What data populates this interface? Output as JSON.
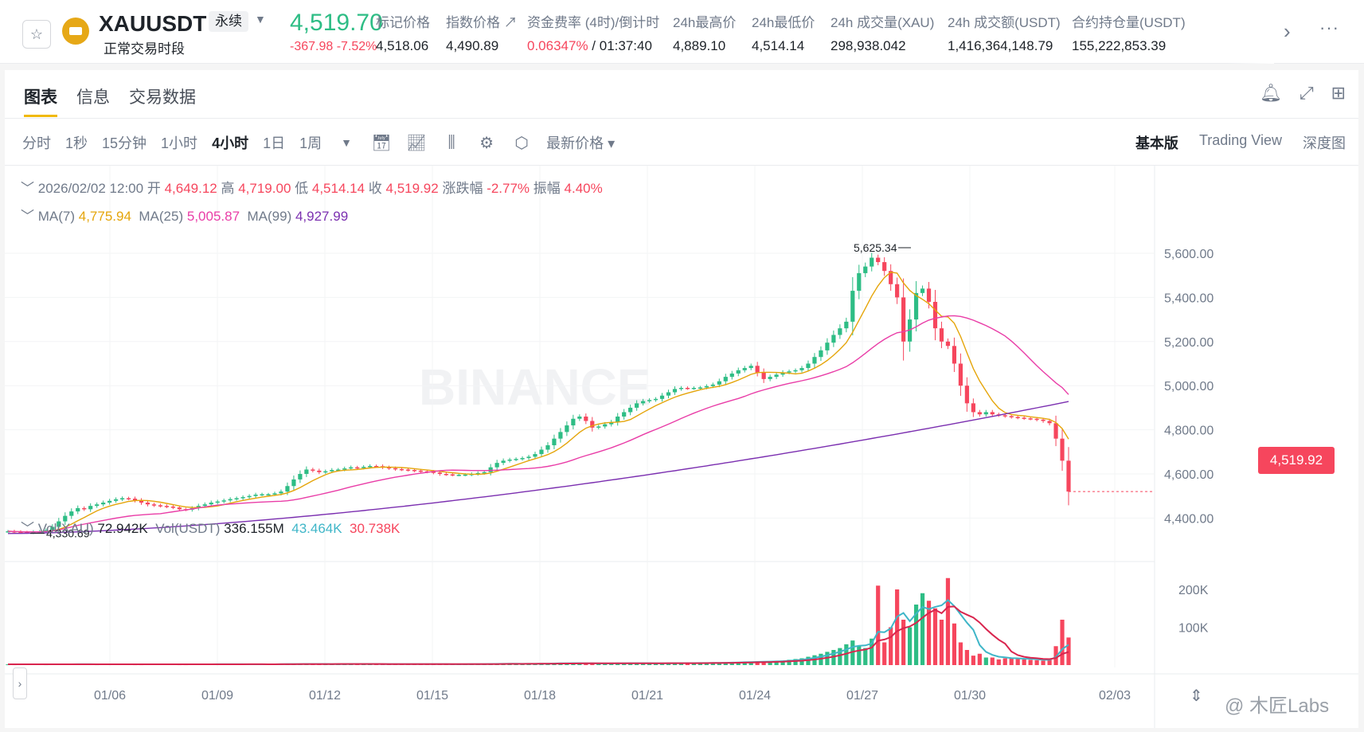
{
  "header": {
    "symbol": "XAUUSDT",
    "contract_type": "永续",
    "session": "正常交易时段",
    "last_price": "4,519.70",
    "change": "-367.98 -7.52%",
    "stats": [
      {
        "label": "标记价格",
        "value": "4,518.06"
      },
      {
        "label": "指数价格 ↗",
        "value": "4,490.89"
      },
      {
        "label": "资金费率 (4时)/倒计时",
        "value_red": "0.06347%",
        "value": " / 01:37:40"
      },
      {
        "label": "24h最高价",
        "value": "4,889.10"
      },
      {
        "label": "24h最低价",
        "value": "4,514.14"
      },
      {
        "label": "24h 成交量(XAU)",
        "value": "298,938.042"
      },
      {
        "label": "24h 成交额(USDT)",
        "value": "1,416,364,148.79"
      },
      {
        "label": "合约持仓量(USDT)",
        "value": "155,222,853.39"
      }
    ]
  },
  "tabs": [
    "图表",
    "信息",
    "交易数据"
  ],
  "timeframes": [
    "分时",
    "1秒",
    "15分钟",
    "1小时",
    "4小时",
    "1日",
    "1周"
  ],
  "active_timeframe": "4小时",
  "price_type": "最新价格 ▾",
  "views": [
    "基本版",
    "Trading View",
    "深度图"
  ],
  "legend": {
    "date": "2026/02/02 12:00",
    "open_label": "开",
    "open": "4,649.12",
    "high_label": "高",
    "high": "4,719.00",
    "low_label": "低",
    "low": "4,514.14",
    "close_label": "收",
    "close": "4,519.92",
    "chg_label": "涨跌幅",
    "chg": "-2.77%",
    "amp_label": "振幅",
    "amp": "4.40%",
    "ma7_label": "MA(7)",
    "ma7": "4,775.94",
    "ma25_label": "MA(25)",
    "ma25": "5,005.87",
    "ma99_label": "MA(99)",
    "ma99": "4,927.99",
    "vol_label": "Vol(XAU)",
    "vol": "72.942K",
    "volu_label": "Vol(USDT)",
    "volu": "336.155M",
    "vol_ma1": "43.464K",
    "vol_ma2": "30.738K"
  },
  "current_price_tag": "4,519.92",
  "watermark": "@ 木匠Labs",
  "colors": {
    "up": "#2ebd85",
    "down": "#f6465d",
    "ma7": "#e5a50a",
    "ma25": "#e93da7",
    "ma99": "#7b2fb0",
    "vol_ma1": "#3fb6c8",
    "vol_ma2": "#d9254e"
  },
  "chart_data": {
    "type": "candlestick",
    "interval": "4h",
    "y_ticks": [
      "5,600.00",
      "5,400.00",
      "5,200.00",
      "5,000.00",
      "4,800.00",
      "4,600.00",
      "4,400.00"
    ],
    "y_tick_values": [
      5600,
      5400,
      5200,
      5000,
      4800,
      4600,
      4400
    ],
    "vol_ticks": [
      "200K",
      "100K"
    ],
    "vol_tick_values": [
      200000,
      100000
    ],
    "x_ticks": [
      "01/06",
      "01/09",
      "01/12",
      "01/15",
      "01/18",
      "01/21",
      "01/24",
      "01/27",
      "01/30",
      "02/03"
    ],
    "high_annotation": "5,625.34",
    "low_annotation": "4,330.69",
    "high_value": 5625.34,
    "low_value": 4330.69,
    "closes": [
      4340,
      4338,
      4336,
      4335,
      4338,
      4340,
      4345,
      4360,
      4385,
      4410,
      4430,
      4445,
      4440,
      4455,
      4462,
      4470,
      4478,
      4485,
      4490,
      4488,
      4480,
      4470,
      4462,
      4458,
      4455,
      4452,
      4448,
      4440,
      4438,
      4445,
      4455,
      4462,
      4470,
      4475,
      4480,
      4486,
      4490,
      4495,
      4500,
      4506,
      4508,
      4508,
      4512,
      4520,
      4545,
      4575,
      4600,
      4620,
      4615,
      4608,
      4612,
      4618,
      4620,
      4625,
      4630,
      4628,
      4632,
      4636,
      4635,
      4630,
      4626,
      4622,
      4620,
      4618,
      4615,
      4612,
      4610,
      4606,
      4600,
      4598,
      4596,
      4596,
      4597,
      4600,
      4604,
      4608,
      4630,
      4650,
      4660,
      4665,
      4668,
      4672,
      4678,
      4690,
      4710,
      4730,
      4760,
      4790,
      4820,
      4850,
      4860,
      4840,
      4810,
      4815,
      4825,
      4835,
      4860,
      4880,
      4900,
      4920,
      4930,
      4935,
      4940,
      4955,
      4970,
      4985,
      4990,
      4988,
      4990,
      4992,
      4998,
      5005,
      5020,
      5040,
      5055,
      5070,
      5080,
      5090,
      5060,
      5030,
      5040,
      5050,
      5060,
      5065,
      5070,
      5080,
      5100,
      5130,
      5160,
      5195,
      5230,
      5260,
      5290,
      5430,
      5510,
      5540,
      5580,
      5560,
      5520,
      5460,
      5400,
      5200,
      5300,
      5420,
      5440,
      5380,
      5260,
      5200,
      5180,
      5100,
      5000,
      4920,
      4880,
      4870,
      4880,
      4870,
      4866,
      4862,
      4858,
      4855,
      4852,
      4850,
      4846,
      4840,
      4830,
      4760,
      4660,
      4520
    ],
    "volumes": [
      2000,
      2000,
      2100,
      2100,
      2200,
      2100,
      2000,
      2100,
      2200,
      2300,
      2400,
      2300,
      2200,
      2100,
      2000,
      2100,
      2200,
      2300,
      2200,
      2100,
      2000,
      2000,
      2100,
      2200,
      2300,
      2200,
      2100,
      2000,
      2000,
      2100,
      2200,
      2300,
      2400,
      2300,
      2200,
      2100,
      2200,
      2300,
      2200,
      2100,
      2100,
      2200,
      2300,
      2600,
      3000,
      3200,
      3100,
      3000,
      2900,
      2800,
      2700,
      2800,
      2900,
      3000,
      3100,
      3000,
      2900,
      2800,
      2700,
      2600,
      2500,
      2400,
      2500,
      2600,
      2700,
      2600,
      2500,
      2400,
      2400,
      2300,
      2300,
      2400,
      2600,
      2800,
      3000,
      3200,
      3500,
      3800,
      3600,
      3400,
      3200,
      3300,
      3500,
      3800,
      4200,
      4600,
      5000,
      5500,
      5200,
      4800,
      4600,
      4400,
      4200,
      4400,
      4600,
      4800,
      5100,
      5300,
      5100,
      4900,
      4800,
      4700,
      4800,
      5000,
      5200,
      5400,
      5300,
      5200,
      5400,
      5600,
      5800,
      6000,
      6500,
      7000,
      7500,
      8000,
      8500,
      8800,
      9000,
      9500,
      10000,
      11000,
      12000,
      14000,
      16000,
      18000,
      22000,
      26000,
      30000,
      35000,
      40000,
      45000,
      55000,
      65000,
      50000,
      45000,
      70000,
      210000,
      60000,
      100000,
      200000,
      120000,
      100000,
      160000,
      190000,
      170000,
      150000,
      120000,
      230000,
      110000,
      60000,
      40000,
      25000,
      30000,
      20000,
      20000,
      15000,
      18000,
      20000,
      16000,
      15000,
      14000,
      13000,
      12000,
      15000,
      50000,
      120000,
      72942
    ]
  }
}
